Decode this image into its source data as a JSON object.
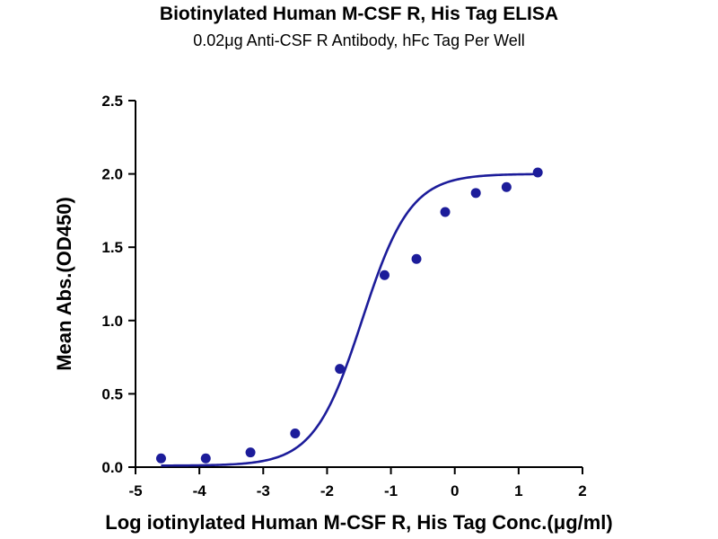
{
  "chart_data": {
    "type": "scatter",
    "title": "Biotinylated Human M-CSF R, His Tag ELISA",
    "subtitle": "0.02μg Anti-CSF R Antibody, hFc Tag Per Well",
    "xlabel": "Log iotinylated Human M-CSF R, His Tag Conc.(μg/ml)",
    "ylabel": "Mean Abs.(OD450)",
    "xlim": [
      -5,
      2
    ],
    "ylim": [
      0,
      2.5
    ],
    "x_ticks": [
      "-5",
      "-4",
      "-3",
      "-2",
      "-1",
      "0",
      "1",
      "2"
    ],
    "y_ticks": [
      "0.0",
      "0.5",
      "1.0",
      "1.5",
      "2.0",
      "2.5"
    ],
    "grid": false,
    "color": "#1c1c9a",
    "points": {
      "x": [
        -4.6,
        -3.9,
        -3.2,
        -2.5,
        -1.8,
        -1.1,
        -0.6,
        -0.15,
        0.33,
        0.81,
        1.3
      ],
      "y": [
        0.06,
        0.06,
        0.1,
        0.23,
        0.67,
        1.31,
        1.42,
        1.74,
        1.87,
        1.91,
        2.01
      ]
    },
    "fit_curve": {
      "model": "4PL",
      "bottom": 0.01,
      "top": 2.0,
      "log_ec50": -1.45,
      "hill": 1.15,
      "x_range": [
        -4.6,
        1.3
      ]
    }
  }
}
